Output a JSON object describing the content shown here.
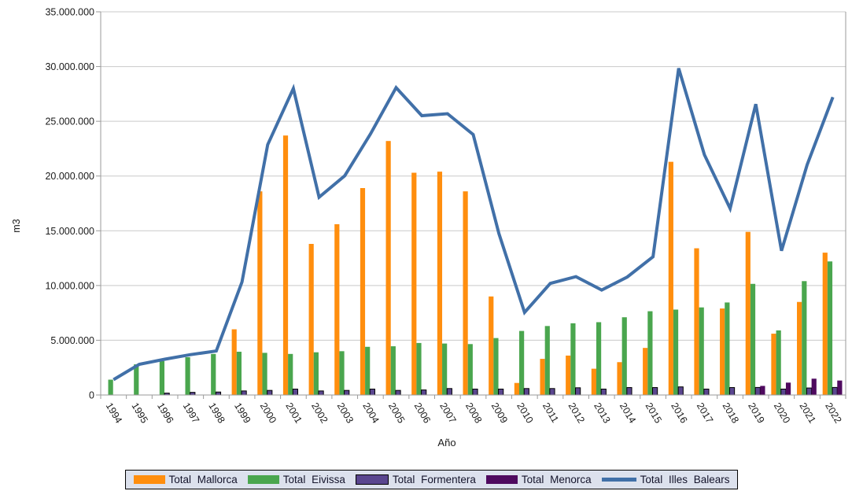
{
  "chart_data": {
    "type": "bar+line",
    "title": "",
    "xlabel": "Año",
    "ylabel": "m3",
    "ylim": [
      0,
      35000000
    ],
    "ytick_step": 5000000,
    "ytick_labels": [
      "0",
      "5.000.000",
      "10.000.000",
      "15.000.000",
      "20.000.000",
      "25.000.000",
      "30.000.000",
      "35.000.000"
    ],
    "grid": true,
    "legend_position": "bottom",
    "categories": [
      "1994",
      "1995",
      "1996",
      "1997",
      "1998",
      "1999",
      "2000",
      "2001",
      "2002",
      "2003",
      "2004",
      "2005",
      "2006",
      "2007",
      "2008",
      "2009",
      "2010",
      "2011",
      "2012",
      "2013",
      "2014",
      "2015",
      "2016",
      "2017",
      "2018",
      "2019",
      "2020",
      "2021",
      "2022"
    ],
    "series": [
      {
        "name": "Total Mallorca",
        "type": "bar",
        "color": "#FF8E0E",
        "values": [
          0,
          0,
          0,
          0,
          0,
          6000000,
          18600000,
          23700000,
          13800000,
          15600000,
          18900000,
          23200000,
          20300000,
          20400000,
          18600000,
          9000000,
          1100000,
          3300000,
          3600000,
          2400000,
          3000000,
          4300000,
          21300000,
          13400000,
          7900000,
          14900000,
          5600000,
          8500000,
          13000000
        ]
      },
      {
        "name": "Total Eivissa",
        "type": "bar",
        "color": "#4AA64E",
        "values": [
          1400000,
          2800000,
          3100000,
          3450000,
          3750000,
          3950000,
          3850000,
          3750000,
          3900000,
          4000000,
          4400000,
          4450000,
          4750000,
          4700000,
          4650000,
          5200000,
          5850000,
          6300000,
          6550000,
          6650000,
          7100000,
          7650000,
          7800000,
          8000000,
          8450000,
          10150000,
          5900000,
          10400000,
          12200000
        ]
      },
      {
        "name": "Total Formentera",
        "type": "bar",
        "color": "#5A468F",
        "stroke": "#000000",
        "values": [
          0,
          0,
          170000,
          240000,
          270000,
          370000,
          420000,
          540000,
          370000,
          420000,
          540000,
          420000,
          460000,
          590000,
          540000,
          540000,
          590000,
          590000,
          660000,
          540000,
          680000,
          680000,
          740000,
          540000,
          680000,
          690000,
          540000,
          640000,
          690000
        ]
      },
      {
        "name": "Total Menorca",
        "type": "bar",
        "color": "#4F0A5F",
        "values": [
          0,
          0,
          0,
          0,
          0,
          0,
          0,
          0,
          0,
          0,
          0,
          0,
          0,
          0,
          0,
          0,
          0,
          0,
          0,
          0,
          0,
          0,
          0,
          0,
          0,
          830000,
          1130000,
          1490000,
          1320000
        ]
      },
      {
        "name": "Total Illes Balears",
        "type": "line",
        "color": "#4170A8",
        "values": [
          1400000,
          2800000,
          3270000,
          3690000,
          4020000,
          10320000,
          22870000,
          27990000,
          18070000,
          20020000,
          23840000,
          28070000,
          25510000,
          25690000,
          23790000,
          14740000,
          7540000,
          10190000,
          10810000,
          9590000,
          10780000,
          12630000,
          29840000,
          21940000,
          17030000,
          26570000,
          13170000,
          21030000,
          27210000
        ]
      }
    ]
  },
  "style": {
    "grid_color": "#C9C9C9",
    "axis_color": "#9A9A9A",
    "label_color": "#1A1A1A",
    "legend_bg": "#DCE1ED",
    "legend_border": "#000000"
  }
}
